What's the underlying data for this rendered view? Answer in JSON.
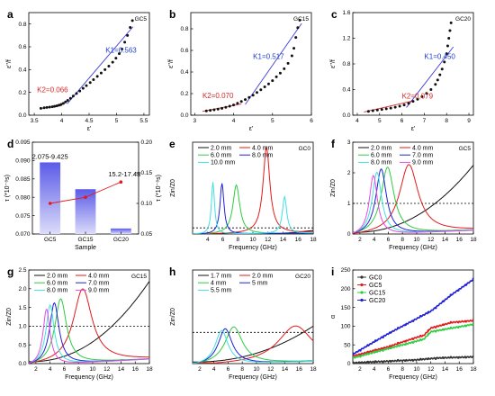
{
  "chart_data": [
    {
      "panel": "a",
      "type": "scatter",
      "tag": "GC5",
      "xlabel": "ε'",
      "ylabel": "ε''/f",
      "xlim": [
        3.4,
        5.6
      ],
      "ylim": [
        0,
        0.9
      ],
      "xticks": [
        3.5,
        4.0,
        4.5,
        5.0,
        5.5
      ],
      "yticks": [
        0.0,
        0.2,
        0.4,
        0.6,
        0.8
      ],
      "points": [
        [
          3.62,
          0.06
        ],
        [
          3.68,
          0.065
        ],
        [
          3.73,
          0.068
        ],
        [
          3.78,
          0.071
        ],
        [
          3.83,
          0.074
        ],
        [
          3.87,
          0.078
        ],
        [
          3.91,
          0.082
        ],
        [
          3.95,
          0.088
        ],
        [
          3.99,
          0.095
        ],
        [
          4.03,
          0.104
        ],
        [
          4.07,
          0.116
        ],
        [
          4.11,
          0.13
        ],
        [
          4.16,
          0.148
        ],
        [
          4.21,
          0.168
        ],
        [
          4.27,
          0.19
        ],
        [
          4.33,
          0.212
        ],
        [
          4.39,
          0.236
        ],
        [
          4.45,
          0.26
        ],
        [
          4.52,
          0.286
        ],
        [
          4.58,
          0.312
        ],
        [
          4.65,
          0.34
        ],
        [
          4.72,
          0.37
        ],
        [
          4.79,
          0.4
        ],
        [
          4.86,
          0.43
        ],
        [
          4.93,
          0.465
        ],
        [
          4.99,
          0.5
        ],
        [
          5.05,
          0.54
        ],
        [
          5.1,
          0.58
        ],
        [
          5.15,
          0.64
        ],
        [
          5.2,
          0.7
        ],
        [
          5.25,
          0.77
        ],
        [
          5.29,
          0.83
        ]
      ],
      "fits": [
        {
          "label": "K1=0.563",
          "slope": 0.563,
          "x_range": [
            4.1,
            5.3
          ],
          "y_at_start": 0.1,
          "color": "#3b3bd9"
        },
        {
          "label": "K2=0.066",
          "slope": 0.066,
          "x_range": [
            3.6,
            4.0
          ],
          "y_at_start": 0.058,
          "color": "#d62728"
        }
      ],
      "annotations": [
        {
          "text": "K1=0.563",
          "x": 4.8,
          "y": 0.55,
          "color": "#1f3fc8"
        },
        {
          "text": "K2=0.066",
          "x": 3.55,
          "y": 0.2,
          "color": "#d62728"
        }
      ]
    },
    {
      "panel": "b",
      "type": "scatter",
      "tag": "GC15",
      "xlabel": "ε'",
      "ylabel": "ε''/f",
      "xlim": [
        2.9,
        6.0
      ],
      "ylim": [
        0,
        0.95
      ],
      "xticks": [
        3,
        4,
        5,
        6
      ],
      "yticks": [
        0.0,
        0.2,
        0.4,
        0.6,
        0.8
      ],
      "points": [
        [
          3.3,
          0.04
        ],
        [
          3.4,
          0.045
        ],
        [
          3.5,
          0.05
        ],
        [
          3.6,
          0.056
        ],
        [
          3.7,
          0.064
        ],
        [
          3.8,
          0.073
        ],
        [
          3.9,
          0.083
        ],
        [
          4.0,
          0.095
        ],
        [
          4.1,
          0.11
        ],
        [
          4.2,
          0.127
        ],
        [
          4.3,
          0.145
        ],
        [
          4.4,
          0.165
        ],
        [
          4.5,
          0.185
        ],
        [
          4.6,
          0.21
        ],
        [
          4.7,
          0.235
        ],
        [
          4.8,
          0.262
        ],
        [
          4.9,
          0.29
        ],
        [
          5.0,
          0.32
        ],
        [
          5.1,
          0.355
        ],
        [
          5.2,
          0.39
        ],
        [
          5.3,
          0.43
        ],
        [
          5.4,
          0.48
        ],
        [
          5.5,
          0.55
        ],
        [
          5.55,
          0.62
        ],
        [
          5.6,
          0.72
        ],
        [
          5.65,
          0.81
        ],
        [
          5.7,
          0.88
        ]
      ],
      "fits": [
        {
          "label": "K1=0.517",
          "slope": 0.517,
          "x_range": [
            4.3,
            5.75
          ],
          "y_at_start": 0.1,
          "color": "#3b3bd9"
        },
        {
          "label": "K2=0.070",
          "slope": 0.07,
          "x_range": [
            3.2,
            4.2
          ],
          "y_at_start": 0.035,
          "color": "#d62728"
        }
      ],
      "annotations": [
        {
          "text": "K1=0.517",
          "x": 4.5,
          "y": 0.52,
          "color": "#1f3fc8"
        },
        {
          "text": "K2=0.070",
          "x": 3.2,
          "y": 0.16,
          "color": "#d62728"
        }
      ]
    },
    {
      "panel": "c",
      "type": "scatter",
      "tag": "GC20",
      "xlabel": "ε'",
      "ylabel": "ε''/f",
      "xlim": [
        3.8,
        9.2
      ],
      "ylim": [
        0,
        1.6
      ],
      "xticks": [
        4,
        5,
        6,
        7,
        8,
        9
      ],
      "yticks": [
        0.0,
        0.4,
        0.8,
        1.2,
        1.6
      ],
      "points": [
        [
          4.5,
          0.06
        ],
        [
          4.7,
          0.07
        ],
        [
          4.9,
          0.08
        ],
        [
          5.1,
          0.09
        ],
        [
          5.3,
          0.1
        ],
        [
          5.5,
          0.11
        ],
        [
          5.7,
          0.125
        ],
        [
          5.9,
          0.14
        ],
        [
          6.1,
          0.16
        ],
        [
          6.3,
          0.185
        ],
        [
          6.5,
          0.215
        ],
        [
          6.7,
          0.25
        ],
        [
          6.9,
          0.29
        ],
        [
          7.1,
          0.34
        ],
        [
          7.3,
          0.4
        ],
        [
          7.5,
          0.48
        ],
        [
          7.6,
          0.55
        ],
        [
          7.7,
          0.63
        ],
        [
          7.8,
          0.72
        ],
        [
          7.9,
          0.83
        ],
        [
          8.0,
          0.96
        ],
        [
          8.05,
          1.08
        ],
        [
          8.1,
          1.2
        ],
        [
          8.15,
          1.32
        ],
        [
          8.2,
          1.44
        ]
      ],
      "fits": [
        {
          "label": "K1=0.450",
          "slope": 0.45,
          "x_range": [
            6.2,
            8.3
          ],
          "y_at_start": 0.12,
          "color": "#3b3bd9"
        },
        {
          "label": "K2=0.079",
          "slope": 0.079,
          "x_range": [
            4.3,
            6.5
          ],
          "y_at_start": 0.05,
          "color": "#d62728"
        }
      ],
      "annotations": [
        {
          "text": "K1=0.450",
          "x": 7.0,
          "y": 0.88,
          "color": "#1f3fc8"
        },
        {
          "text": "K2=0.079",
          "x": 6.0,
          "y": 0.26,
          "color": "#d62728"
        }
      ]
    },
    {
      "panel": "d",
      "type": "bar",
      "xlabel": "Sample",
      "ylabel_left": "τ (*10⁻⁸s)",
      "ylabel_right": "τ (*10⁻⁸s)",
      "categories": [
        "GC5",
        "GC15",
        "GC20"
      ],
      "bar_values": [
        0.0895,
        0.0822,
        0.0715
      ],
      "bar_labels": [
        "2.075-9.425",
        "",
        ""
      ],
      "ylim_left": [
        0.07,
        0.095
      ],
      "yticks_left": [
        0.07,
        0.075,
        0.08,
        0.085,
        0.09,
        0.095
      ],
      "line_values": [
        0.1,
        0.11,
        0.135
      ],
      "line_labels": [
        "",
        "",
        "15.2-17.48"
      ],
      "ylim_right": [
        0.05,
        0.2
      ],
      "yticks_right": [
        0.05,
        0.1,
        0.15,
        0.2
      ]
    },
    {
      "panel": "e",
      "type": "line",
      "tag": "GC0",
      "xlabel": "Frequency (GHz)",
      "ylabel": "Zin/Z0",
      "xlim": [
        2,
        18
      ],
      "ylim": [
        0,
        15
      ],
      "xticks": [
        4,
        6,
        8,
        10,
        12,
        14,
        16,
        18
      ],
      "yticks": [],
      "reference": 1,
      "series": [
        {
          "name": "2.0 mm",
          "color": "#111111",
          "peak": [
            18.5,
            0.6
          ],
          "width": 3,
          "base": 0.05
        },
        {
          "name": "4.0 mm",
          "color": "#e31a1c",
          "peak": [
            11.8,
            14.0
          ],
          "width": 0.55,
          "base": 0.3
        },
        {
          "name": "6.0 mm",
          "color": "#2ecc40",
          "peak": [
            7.8,
            8.0
          ],
          "width": 0.55,
          "base": 0.2
        },
        {
          "name": "8.0 mm",
          "color": "#1f1fd6",
          "peak": [
            5.9,
            8.3
          ],
          "width": 0.32,
          "base": 0.2
        },
        {
          "name": "10.0 mm",
          "color": "#40e0e0",
          "peak": [
            4.7,
            8.5
          ],
          "width": 0.25,
          "base": 0.2,
          "peak2": [
            14.2,
            6.0
          ],
          "width2": 0.35
        }
      ]
    },
    {
      "panel": "f",
      "type": "line",
      "tag": "GC5",
      "xlabel": "Frequency (GHz)",
      "ylabel": "Zin/Z0",
      "xlim": [
        1,
        18
      ],
      "ylim": [
        0,
        3
      ],
      "xticks": [
        2,
        4,
        6,
        8,
        10,
        12,
        14,
        16,
        18
      ],
      "yticks": [
        0,
        1,
        2,
        3
      ],
      "reference": 1,
      "series": [
        {
          "name": "2.0 mm",
          "color": "#111111",
          "rising": true,
          "end": 2.2
        },
        {
          "name": "4.0 mm",
          "color": "#e31a1c",
          "peak": [
            8.9,
            2.25
          ],
          "width": 1.6,
          "base": 0.2
        },
        {
          "name": "6.0 mm",
          "color": "#2ecc40",
          "peak": [
            5.9,
            2.2
          ],
          "width": 1.1,
          "base": 0.2
        },
        {
          "name": "7.0 mm",
          "color": "#1f1fd6",
          "peak": [
            5.0,
            2.15
          ],
          "width": 0.9,
          "base": 0.2
        },
        {
          "name": "8.0 mm",
          "color": "#40e0e0",
          "peak": [
            4.4,
            2.05
          ],
          "width": 0.8,
          "base": 0.2
        },
        {
          "name": "9.0 mm",
          "color": "#e64be6",
          "peak": [
            3.9,
            1.95
          ],
          "width": 0.7,
          "base": 0.2
        }
      ]
    },
    {
      "panel": "g",
      "type": "line",
      "tag": "GC15",
      "xlabel": "Frequency (GHz)",
      "ylabel": "Zin/Z0",
      "xlim": [
        1,
        18
      ],
      "ylim": [
        0,
        2.5
      ],
      "xticks": [
        2,
        4,
        6,
        8,
        10,
        12,
        14,
        16,
        18
      ],
      "yticks": [
        0.0,
        0.5,
        1.0,
        1.5,
        2.0,
        2.5
      ],
      "reference": 1,
      "series": [
        {
          "name": "2.0 mm",
          "color": "#111111",
          "rising": true,
          "end": 2.15
        },
        {
          "name": "4.0 mm",
          "color": "#e31a1c",
          "peak": [
            8.6,
            1.98
          ],
          "width": 1.6,
          "base": 0.2
        },
        {
          "name": "6.0 mm",
          "color": "#2ecc40",
          "peak": [
            5.5,
            1.75
          ],
          "width": 1.0,
          "base": 0.2
        },
        {
          "name": "7.0 mm",
          "color": "#1f1fd6",
          "peak": [
            4.6,
            1.65
          ],
          "width": 0.8,
          "base": 0.2
        },
        {
          "name": "8.0 mm",
          "color": "#40e0e0",
          "peak": [
            4.0,
            1.6
          ],
          "width": 0.7,
          "base": 0.2
        },
        {
          "name": "9.0 mm",
          "color": "#e64be6",
          "peak": [
            3.5,
            1.5
          ],
          "width": 0.6,
          "base": 0.2
        }
      ]
    },
    {
      "panel": "h",
      "type": "line",
      "tag": "GC20",
      "xlabel": "Frequency (GHz)",
      "ylabel": "Zin/Z0",
      "xlim": [
        1,
        18
      ],
      "ylim": [
        0,
        3
      ],
      "xticks": [
        2,
        4,
        6,
        8,
        10,
        12,
        14,
        16,
        18
      ],
      "yticks": [],
      "reference": 1,
      "series": [
        {
          "name": "1.7 mm",
          "color": "#111111",
          "rising": true,
          "end": 1.15
        },
        {
          "name": "2.0 mm",
          "color": "#e31a1c",
          "peak": [
            15.5,
            1.2
          ],
          "width": 3.0,
          "base": 0.1
        },
        {
          "name": "4 mm",
          "color": "#2ecc40",
          "peak": [
            6.8,
            1.2
          ],
          "width": 1.5,
          "base": 0.15
        },
        {
          "name": "5 mm",
          "color": "#1f1fd6",
          "peak": [
            5.6,
            1.15
          ],
          "width": 1.2,
          "base": 0.15
        },
        {
          "name": "5.5 mm",
          "color": "#40e0e0",
          "peak": [
            5.1,
            1.1
          ],
          "width": 1.1,
          "base": 0.15
        }
      ]
    },
    {
      "panel": "i",
      "type": "line",
      "xlabel": "Frequency (GHz)",
      "ylabel": "α",
      "xlim": [
        1,
        18
      ],
      "ylim": [
        0,
        250
      ],
      "xticks": [
        2,
        4,
        6,
        8,
        10,
        12,
        14,
        16,
        18
      ],
      "yticks": [
        0,
        50,
        100,
        150,
        200,
        250
      ],
      "series": [
        {
          "name": "GC0",
          "color": "#333333",
          "values_at": [
            [
              1,
              2
            ],
            [
              10,
              10
            ],
            [
              13,
              15
            ],
            [
              18,
              18
            ]
          ]
        },
        {
          "name": "GC5",
          "color": "#e31a1c",
          "values_at": [
            [
              1,
              20
            ],
            [
              6,
              45
            ],
            [
              10,
              70
            ],
            [
              11,
              75
            ],
            [
              12,
              95
            ],
            [
              15,
              110
            ],
            [
              18,
              115
            ]
          ]
        },
        {
          "name": "GC15",
          "color": "#2ecc40",
          "values_at": [
            [
              1,
              15
            ],
            [
              6,
              40
            ],
            [
              10,
              60
            ],
            [
              11,
              65
            ],
            [
              12,
              85
            ],
            [
              15,
              95
            ],
            [
              18,
              105
            ]
          ]
        },
        {
          "name": "GC20",
          "color": "#1f1fd6",
          "values_at": [
            [
              1,
              25
            ],
            [
              6,
              80
            ],
            [
              10,
              120
            ],
            [
              12,
              140
            ],
            [
              15,
              185
            ],
            [
              18,
              225
            ]
          ]
        }
      ]
    }
  ]
}
